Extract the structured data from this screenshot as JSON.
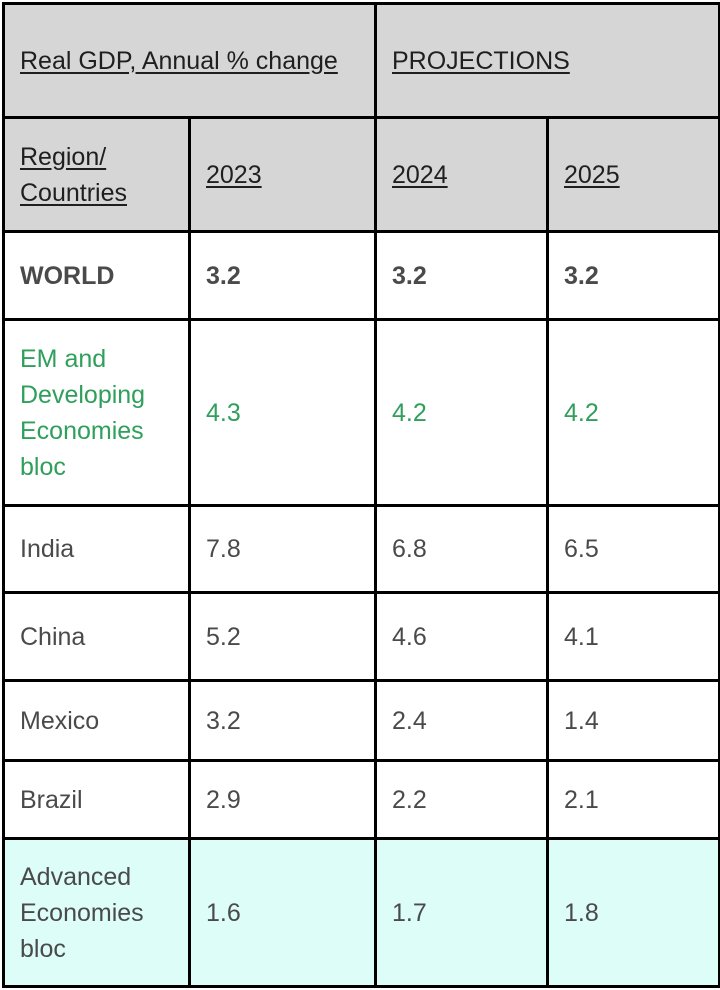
{
  "header": {
    "title": "Real GDP, Annual % change",
    "projections": "PROJECTIONS",
    "col_region": "Region/ Countries",
    "years": [
      "2023",
      "2024",
      "2025"
    ]
  },
  "rows": [
    {
      "name": "WORLD",
      "values": [
        "3.2",
        "3.2",
        "3.2"
      ]
    },
    {
      "name": "EM and Developing Economies bloc",
      "values": [
        "4.3",
        "4.2",
        "4.2"
      ]
    },
    {
      "name": "India",
      "values": [
        "7.8",
        "6.8",
        "6.5"
      ]
    },
    {
      "name": "China",
      "values": [
        "5.2",
        "4.6",
        "4.1"
      ]
    },
    {
      "name": "Mexico",
      "values": [
        "3.2",
        "2.4",
        "1.4"
      ]
    },
    {
      "name": "Brazil",
      "values": [
        "2.9",
        "2.2",
        "2.1"
      ]
    },
    {
      "name": "Advanced Economies bloc",
      "values": [
        "1.6",
        "1.7",
        "1.8"
      ]
    }
  ],
  "colors": {
    "header_bg": "#d6d6d6",
    "em_text": "#2f9f5b",
    "advanced_bg": "#dcfdf8",
    "border": "#000000"
  }
}
